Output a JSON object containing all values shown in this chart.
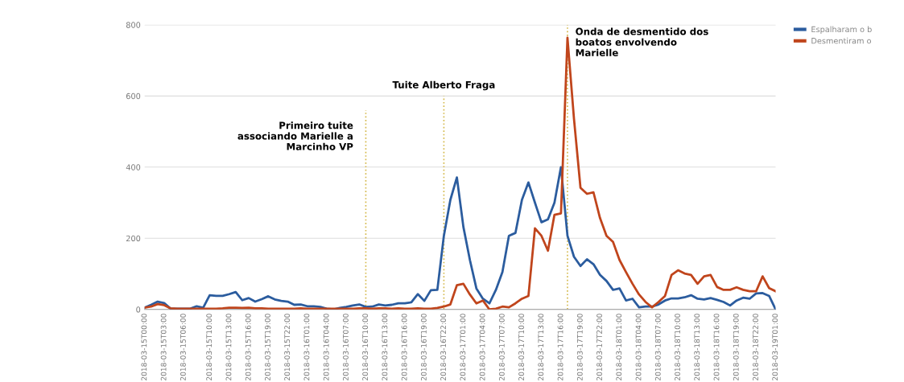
{
  "chart_data": {
    "type": "line",
    "x": [
      "2018-03-15T00:00",
      "2018-03-15T01:00",
      "2018-03-15T02:00",
      "2018-03-15T03:00",
      "2018-03-15T04:00",
      "2018-03-15T05:00",
      "2018-03-15T06:00",
      "2018-03-15T07:00",
      "2018-03-15T08:00",
      "2018-03-15T09:00",
      "2018-03-15T10:00",
      "2018-03-15T11:00",
      "2018-03-15T12:00",
      "2018-03-15T13:00",
      "2018-03-15T14:00",
      "2018-03-15T15:00",
      "2018-03-15T16:00",
      "2018-03-15T17:00",
      "2018-03-15T18:00",
      "2018-03-15T19:00",
      "2018-03-15T20:00",
      "2018-03-15T21:00",
      "2018-03-15T22:00",
      "2018-03-15T23:00",
      "2018-03-16T00:00",
      "2018-03-16T01:00",
      "2018-03-16T02:00",
      "2018-03-16T03:00",
      "2018-03-16T04:00",
      "2018-03-16T05:00",
      "2018-03-16T06:00",
      "2018-03-16T07:00",
      "2018-03-16T08:00",
      "2018-03-16T09:00",
      "2018-03-16T10:00",
      "2018-03-16T11:00",
      "2018-03-16T12:00",
      "2018-03-16T13:00",
      "2018-03-16T14:00",
      "2018-03-16T15:00",
      "2018-03-16T16:00",
      "2018-03-16T17:00",
      "2018-03-16T18:00",
      "2018-03-16T19:00",
      "2018-03-16T20:00",
      "2018-03-16T21:00",
      "2018-03-16T22:00",
      "2018-03-16T23:00",
      "2018-03-17T00:00",
      "2018-03-17T01:00",
      "2018-03-17T02:00",
      "2018-03-17T03:00",
      "2018-03-17T04:00",
      "2018-03-17T05:00",
      "2018-03-17T06:00",
      "2018-03-17T07:00",
      "2018-03-17T08:00",
      "2018-03-17T09:00",
      "2018-03-17T10:00",
      "2018-03-17T11:00",
      "2018-03-17T12:00",
      "2018-03-17T13:00",
      "2018-03-17T14:00",
      "2018-03-17T15:00",
      "2018-03-17T16:00",
      "2018-03-17T17:00",
      "2018-03-17T18:00",
      "2018-03-17T19:00",
      "2018-03-17T20:00",
      "2018-03-17T21:00",
      "2018-03-17T22:00",
      "2018-03-17T23:00",
      "2018-03-18T00:00",
      "2018-03-18T01:00",
      "2018-03-18T02:00",
      "2018-03-18T03:00",
      "2018-03-18T04:00",
      "2018-03-18T05:00",
      "2018-03-18T06:00",
      "2018-03-18T07:00",
      "2018-03-18T08:00",
      "2018-03-18T09:00",
      "2018-03-18T10:00",
      "2018-03-18T11:00",
      "2018-03-18T12:00",
      "2018-03-18T13:00",
      "2018-03-18T14:00",
      "2018-03-18T15:00",
      "2018-03-18T16:00",
      "2018-03-18T17:00",
      "2018-03-18T18:00",
      "2018-03-18T19:00",
      "2018-03-18T20:00",
      "2018-03-18T21:00",
      "2018-03-18T22:00",
      "2018-03-18T23:00",
      "2018-03-19T00:00",
      "2018-03-19T01:00"
    ],
    "series": [
      {
        "name": "Espalharam o b",
        "color": "#2b5c9e",
        "values": [
          5,
          13,
          22,
          18,
          2,
          2,
          2,
          2,
          9,
          5,
          40,
          38,
          38,
          43,
          49,
          26,
          32,
          22,
          29,
          37,
          28,
          24,
          22,
          13,
          14,
          9,
          9,
          7,
          2,
          0,
          4,
          7,
          11,
          14,
          7,
          8,
          14,
          11,
          13,
          17,
          17,
          20,
          43,
          24,
          54,
          55,
          207,
          308,
          371,
          232,
          139,
          59,
          30,
          17,
          55,
          105,
          207,
          215,
          308,
          357,
          300,
          245,
          253,
          300,
          400,
          207,
          148,
          122,
          141,
          127,
          97,
          80,
          55,
          59,
          25,
          30,
          6,
          8,
          8,
          14,
          25,
          31,
          31,
          34,
          40,
          30,
          28,
          32,
          27,
          21,
          11,
          25,
          33,
          30,
          45,
          46,
          38,
          0
        ]
      },
      {
        "name": "Desmentiram o",
        "color": "#c0451c",
        "values": [
          5,
          8,
          15,
          12,
          3,
          2,
          2,
          2,
          2,
          2,
          2,
          2,
          3,
          5,
          5,
          4,
          5,
          3,
          3,
          2,
          2,
          2,
          2,
          2,
          3,
          2,
          2,
          2,
          2,
          2,
          2,
          2,
          2,
          3,
          3,
          2,
          3,
          3,
          2,
          3,
          2,
          2,
          3,
          2,
          2,
          4,
          8,
          14,
          68,
          72,
          42,
          17,
          25,
          0,
          2,
          8,
          6,
          17,
          30,
          38,
          228,
          207,
          165,
          266,
          270,
          764,
          536,
          342,
          325,
          329,
          257,
          207,
          190,
          139,
          105,
          72,
          42,
          21,
          6,
          21,
          38,
          97,
          110,
          101,
          97,
          72,
          93,
          97,
          63,
          55,
          55,
          62,
          55,
          51,
          51,
          93,
          60,
          51
        ]
      }
    ],
    "xlim": [
      "2018-03-15T00:00",
      "2018-03-19T01:00"
    ],
    "xticks": [
      "2018-03-15T00:00",
      "2018-03-15T03:00",
      "2018-03-15T06:00",
      "2018-03-15T10:00",
      "2018-03-15T13:00",
      "2018-03-15T16:00",
      "2018-03-15T19:00",
      "2018-03-15T22:00",
      "2018-03-16T01:00",
      "2018-03-16T04:00",
      "2018-03-16T07:00",
      "2018-03-16T10:00",
      "2018-03-16T13:00",
      "2018-03-16T16:00",
      "2018-03-16T19:00",
      "2018-03-16T22:00",
      "2018-03-17T01:00",
      "2018-03-17T04:00",
      "2018-03-17T07:00",
      "2018-03-17T10:00",
      "2018-03-17T13:00",
      "2018-03-17T16:00",
      "2018-03-17T19:00",
      "2018-03-17T22:00",
      "2018-03-18T01:00",
      "2018-03-18T04:00",
      "2018-03-18T07:00",
      "2018-03-18T10:00",
      "2018-03-18T13:00",
      "2018-03-18T16:00",
      "2018-03-18T19:00",
      "2018-03-18T22:00",
      "2018-03-19T01:00"
    ],
    "ylim": [
      0,
      800
    ],
    "yticks": [
      0,
      200,
      400,
      600,
      800
    ],
    "ref_lines": [
      {
        "axis": "x",
        "value": "2018-03-16T10:00",
        "label": "Primeiro tuite\nassociando Marielle a\nMarcinho VP",
        "color": "#d4b84a",
        "line_style": "dotted"
      },
      {
        "axis": "x",
        "value": "2018-03-16T22:00",
        "label": "Tuite Alberto Fraga",
        "color": "#d4b84a",
        "line_style": "dotted"
      },
      {
        "axis": "x",
        "value": "2018-03-17T17:00",
        "label": "Onda de desmentido dos\nboatos envolvendo\nMarielle",
        "color": "#d4b84a",
        "line_style": "dotted"
      }
    ],
    "grid": "y",
    "legend": "top right",
    "line_style": "solid",
    "marker": "none"
  }
}
